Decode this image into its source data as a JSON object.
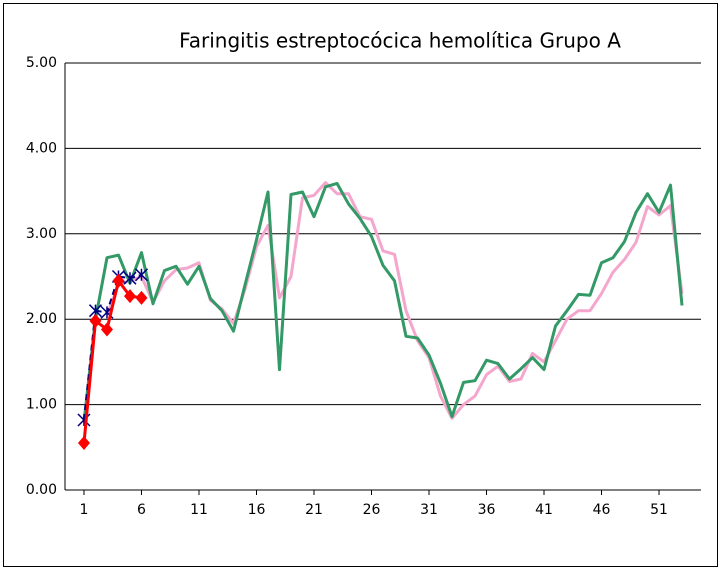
{
  "chart_data": {
    "type": "line",
    "title": "Faringitis estreptocócica hemolítica Grupo A",
    "x": [
      1,
      2,
      3,
      4,
      5,
      6,
      7,
      8,
      9,
      10,
      11,
      12,
      13,
      14,
      15,
      16,
      17,
      18,
      19,
      20,
      21,
      22,
      23,
      24,
      25,
      26,
      27,
      28,
      29,
      30,
      31,
      32,
      33,
      34,
      35,
      36,
      37,
      38,
      39,
      40,
      41,
      42,
      43,
      44,
      45,
      46,
      47,
      48,
      49,
      50,
      51,
      52,
      53
    ],
    "xlim": [
      -0.65,
      54.65
    ],
    "xticks": [
      1,
      6,
      11,
      16,
      21,
      26,
      31,
      36,
      41,
      46,
      51
    ],
    "ylim": [
      0,
      5
    ],
    "yticks": [
      {
        "value": 0,
        "label": "0.00"
      },
      {
        "value": 1,
        "label": "1.00"
      },
      {
        "value": 2,
        "label": "2.00"
      },
      {
        "value": 3,
        "label": "3.00"
      },
      {
        "value": 4,
        "label": "4.00"
      },
      {
        "value": 5,
        "label": "5.00"
      }
    ],
    "grid": true,
    "series": [
      {
        "color": "#f4a6cc",
        "marker": "none",
        "dash": false,
        "values": [
          null,
          null,
          2.05,
          2.4,
          2.45,
          2.5,
          2.2,
          2.45,
          2.58,
          2.6,
          2.66,
          2.22,
          2.12,
          1.95,
          2.35,
          2.85,
          3.1,
          2.25,
          2.5,
          3.42,
          3.45,
          3.6,
          3.47,
          3.47,
          3.2,
          3.17,
          2.8,
          2.76,
          2.1,
          1.75,
          1.55,
          1.1,
          0.84,
          1.0,
          1.1,
          1.35,
          1.45,
          1.27,
          1.3,
          1.6,
          1.5,
          1.75,
          2.0,
          2.1,
          2.1,
          2.3,
          2.55,
          2.7,
          2.9,
          3.32,
          3.22,
          3.33,
          2.3
        ]
      },
      {
        "color": "#339966",
        "marker": "none",
        "dash": false,
        "values": [
          0.8,
          2.0,
          2.72,
          2.75,
          2.42,
          2.78,
          2.18,
          2.57,
          2.62,
          2.41,
          2.62,
          2.24,
          2.1,
          1.86,
          2.4,
          2.93,
          3.49,
          1.41,
          3.46,
          3.49,
          3.2,
          3.55,
          3.59,
          3.35,
          3.18,
          2.97,
          2.63,
          2.45,
          1.8,
          1.78,
          1.58,
          1.25,
          0.86,
          1.26,
          1.28,
          1.52,
          1.48,
          1.3,
          1.42,
          1.55,
          1.41,
          1.92,
          2.1,
          2.29,
          2.28,
          2.66,
          2.72,
          2.91,
          3.25,
          3.47,
          3.25,
          3.57,
          2.16
        ]
      },
      {
        "color": "#000080",
        "marker": "asterisk",
        "dash": true,
        "values": [
          0.82,
          2.1,
          2.08,
          2.5,
          2.48,
          2.52,
          null,
          null,
          null,
          null,
          null,
          null,
          null,
          null,
          null,
          null,
          null,
          null,
          null,
          null,
          null,
          null,
          null,
          null,
          null,
          null,
          null,
          null,
          null,
          null,
          null,
          null,
          null,
          null,
          null,
          null,
          null,
          null,
          null,
          null,
          null,
          null,
          null,
          null,
          null,
          null,
          null,
          null,
          null,
          null,
          null,
          null,
          null
        ]
      },
      {
        "color": "#ff0000",
        "marker": "diamond",
        "dash": false,
        "values": [
          0.55,
          1.98,
          1.88,
          2.45,
          2.27,
          2.25,
          null,
          null,
          null,
          null,
          null,
          null,
          null,
          null,
          null,
          null,
          null,
          null,
          null,
          null,
          null,
          null,
          null,
          null,
          null,
          null,
          null,
          null,
          null,
          null,
          null,
          null,
          null,
          null,
          null,
          null,
          null,
          null,
          null,
          null,
          null,
          null,
          null,
          null,
          null,
          null,
          null,
          null,
          null,
          null,
          null,
          null,
          null
        ]
      }
    ]
  }
}
